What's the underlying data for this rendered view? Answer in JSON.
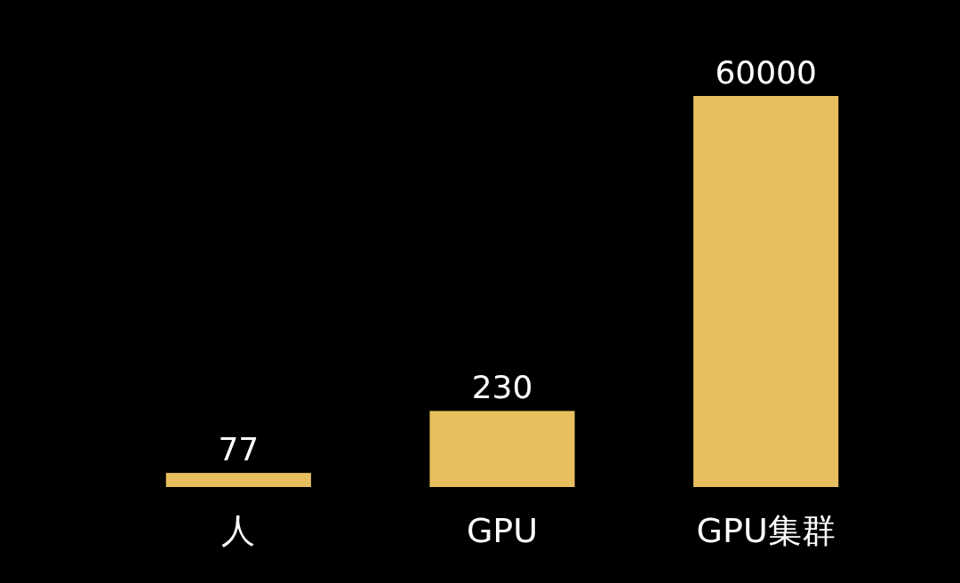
{
  "chart_data": {
    "type": "bar",
    "categories": [
      "人",
      "GPU",
      "GPU集群"
    ],
    "values": [
      77,
      230,
      60000
    ],
    "color": "#e8bf5e",
    "log": true,
    "ylim": [
      60,
      60000
    ],
    "tick_labels": "x",
    "data_labels": true
  }
}
